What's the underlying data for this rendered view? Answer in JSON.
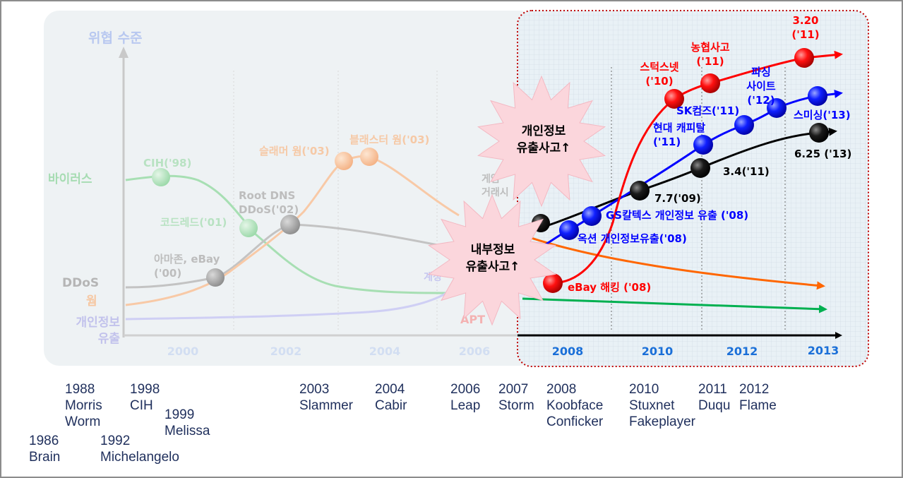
{
  "chart_data": {
    "type": "line",
    "ylabel": "위협 수준",
    "x_ticks": [
      "2000",
      "2002",
      "2004",
      "2006",
      "2008",
      "2010",
      "2012",
      "2013"
    ],
    "faded_series": [
      {
        "name": "바이러스",
        "color": "#7fcf8f",
        "points": [
          {
            "label": "CIH('98)"
          },
          {
            "label": "코드레드('01)"
          }
        ]
      },
      {
        "name": "DDoS",
        "color": "#a6a6a6",
        "points": [
          {
            "label": "아마존, eBay\n('00)"
          },
          {
            "label": "Root DNS\nDDoS('02)"
          }
        ]
      },
      {
        "name": "웜",
        "color": "#f4b183",
        "points": [
          {
            "label": "슬래머 웜('03)"
          },
          {
            "label": "블래스터 웜('03)"
          }
        ]
      },
      {
        "name": "개인정보\n유출",
        "color": "#b4b4f0",
        "points": []
      }
    ],
    "faded_text_fragments": [
      "게임",
      "거래시",
      "계정",
      "APT"
    ],
    "highlight_series": [
      {
        "color": "#ff0000",
        "points": [
          {
            "label": "eBay 해킹 ('08)"
          },
          {
            "label": "스턱스넷\n('10)"
          },
          {
            "label": "농협사고\n('11)"
          },
          {
            "label": "3.20\n('11)"
          }
        ]
      },
      {
        "color": "#0000ff",
        "points": [
          {
            "label": "옥션 개인정보유출('08)"
          },
          {
            "label": "GS칼텍스 개인정보 유출 ('08)"
          },
          {
            "label": "현대 캐피탈\n('11)"
          },
          {
            "label": "SK컴즈('11)"
          },
          {
            "label": "파싱\n사이트\n('12)"
          },
          {
            "label": "스미싱('13)"
          }
        ]
      },
      {
        "color": "#000000",
        "points": [
          {
            "label": ""
          },
          {
            "label": "7.7('09)"
          },
          {
            "label": "3.4('11)"
          },
          {
            "label": "6.25 ('13)"
          }
        ]
      }
    ],
    "other_lines": [
      {
        "color": "#ff6600"
      },
      {
        "color": "#00b050"
      }
    ],
    "callouts": [
      "개인정보\n유출사고↑",
      "내부정보\n유출사고↑"
    ]
  },
  "timeline": [
    {
      "text": "1988\nMorris\nWorm"
    },
    {
      "text": "1998\nCIH"
    },
    {
      "text": "1999\nMelissa"
    },
    {
      "text": "1986\nBrain"
    },
    {
      "text": "1992\nMichelangelo"
    },
    {
      "text": "2003\nSlammer"
    },
    {
      "text": "2004\nCabir"
    },
    {
      "text": "2006\nLeap"
    },
    {
      "text": "2007\nStorm"
    },
    {
      "text": "2008\nKoobface\nConficker"
    },
    {
      "text": "2010\nStuxnet\nFakeplayer"
    },
    {
      "text": "2011\nDuqu"
    },
    {
      "text": "2012\nFlame"
    }
  ]
}
